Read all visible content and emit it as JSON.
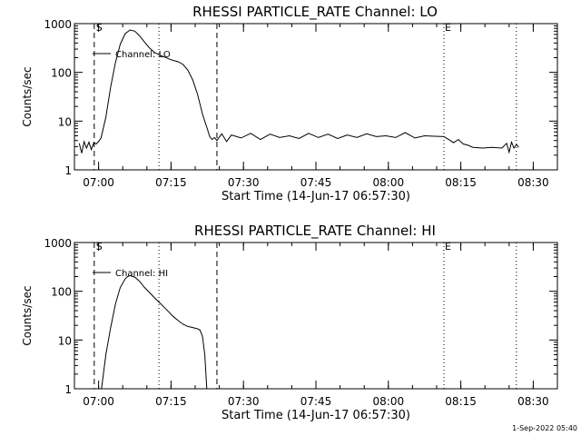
{
  "chart_data": [
    {
      "type": "line",
      "title": "RHESSI PARTICLE_RATE Channel: LO",
      "xlabel": "Start Time (14-Jun-17 06:57:30)",
      "ylabel": "Counts/sec",
      "yscale": "log",
      "ylim": [
        1,
        1000
      ],
      "xlim_minutes": [
        -2.5,
        97.5
      ],
      "x_ticks": [
        "07:00",
        "07:15",
        "07:30",
        "07:45",
        "08:00",
        "08:15",
        "08:30"
      ],
      "y_ticks": [
        "1",
        "10",
        "100",
        "1000"
      ],
      "legend": "Channel: LO",
      "markers": {
        "start_label": "S",
        "end_label": "E"
      },
      "vlines": [
        {
          "t": 1.6,
          "style": "dashed"
        },
        {
          "t": 15,
          "style": "dotted"
        },
        {
          "t": 27,
          "style": "dashed"
        },
        {
          "t": 74,
          "style": "dotted"
        },
        {
          "t": 89,
          "style": "dotted"
        }
      ],
      "series": [
        {
          "name": "Channel: LO",
          "x_minutes": [
            -1.5,
            -1.0,
            -0.5,
            0.0,
            0.5,
            1.0,
            1.5,
            2.0,
            2.5,
            3.0,
            4.0,
            5.0,
            6.0,
            7.0,
            8.0,
            9.0,
            10.0,
            11.0,
            12.0,
            13.0,
            14.0,
            15.0,
            16.0,
            17.0,
            18.0,
            19.0,
            20.0,
            21.0,
            22.0,
            23.0,
            24.0,
            25.0,
            25.5,
            26.0,
            26.5,
            27.0,
            28.0,
            29.0,
            30.0,
            32.0,
            34.0,
            36.0,
            38.0,
            40.0,
            42.0,
            44.0,
            46.0,
            48.0,
            50.0,
            52.0,
            54.0,
            56.0,
            58.0,
            60.0,
            62.0,
            64.0,
            66.0,
            68.0,
            70.0,
            72.0,
            74.0,
            75.0,
            76.0,
            77.0,
            78.0,
            79.0,
            80.0,
            82.0,
            84.0,
            86.0,
            87.0,
            87.5,
            88.0,
            88.5,
            89.0,
            89.5
          ],
          "y": [
            3.5,
            2.2,
            3.8,
            2.8,
            3.7,
            2.6,
            3.6,
            3.4,
            3.8,
            4.5,
            12,
            50,
            160,
            380,
            620,
            740,
            700,
            560,
            420,
            320,
            260,
            230,
            210,
            190,
            175,
            165,
            145,
            110,
            70,
            35,
            14,
            7,
            4.8,
            4.2,
            4.6,
            4.0,
            5.5,
            3.8,
            5.2,
            4.5,
            5.6,
            4.2,
            5.4,
            4.6,
            5.0,
            4.4,
            5.6,
            4.6,
            5.4,
            4.4,
            5.2,
            4.6,
            5.5,
            4.8,
            5.0,
            4.6,
            5.8,
            4.5,
            5.0,
            4.9,
            4.8,
            4.2,
            3.6,
            4.2,
            3.4,
            3.2,
            2.9,
            2.8,
            2.9,
            2.8,
            3.5,
            2.3,
            3.7,
            2.8,
            3.3,
            2.9
          ]
        }
      ]
    },
    {
      "type": "line",
      "title": "RHESSI PARTICLE_RATE Channel: HI",
      "xlabel": "Start Time (14-Jun-17 06:57:30)",
      "ylabel": "Counts/sec",
      "yscale": "log",
      "ylim": [
        1,
        1000
      ],
      "xlim_minutes": [
        -2.5,
        97.5
      ],
      "x_ticks": [
        "07:00",
        "07:15",
        "07:30",
        "07:45",
        "08:00",
        "08:15",
        "08:30"
      ],
      "y_ticks": [
        "1",
        "10",
        "100",
        "1000"
      ],
      "legend": "Channel: HI",
      "markers": {
        "start_label": "S",
        "end_label": "E"
      },
      "vlines": [
        {
          "t": 1.6,
          "style": "dashed"
        },
        {
          "t": 15,
          "style": "dotted"
        },
        {
          "t": 27,
          "style": "dashed"
        },
        {
          "t": 74,
          "style": "dotted"
        },
        {
          "t": 89,
          "style": "dotted"
        }
      ],
      "series": [
        {
          "name": "Channel: HI",
          "x_minutes": [
            3.1,
            3.5,
            4.0,
            5.0,
            6.0,
            7.0,
            8.0,
            8.5,
            9.0,
            10.0,
            11.0,
            12.0,
            13.0,
            14.0,
            15.0,
            16.0,
            17.0,
            18.0,
            19.0,
            20.0,
            21.0,
            22.0,
            23.0,
            23.5,
            24.0,
            24.5,
            24.9
          ],
          "y": [
            1.0,
            2.0,
            5.0,
            18,
            55,
            120,
            180,
            200,
            210,
            195,
            160,
            120,
            95,
            75,
            60,
            48,
            38,
            30,
            25,
            21,
            19,
            18,
            17,
            16,
            12,
            5,
            1.0
          ]
        }
      ]
    }
  ],
  "footer": {
    "timestamp": "1-Sep-2022 05:40"
  }
}
